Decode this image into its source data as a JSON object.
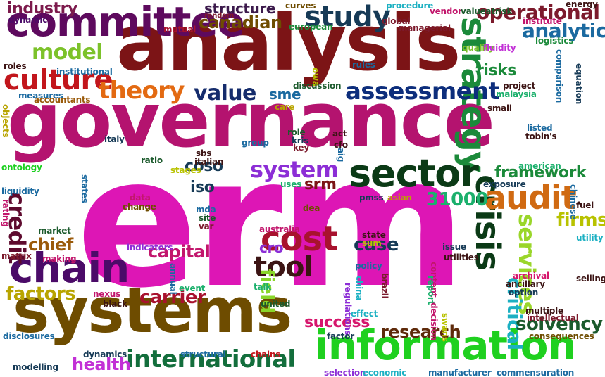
{
  "words": [
    {
      "text": "erm",
      "color": "#dd16b5",
      "rotate": false
    },
    {
      "text": "governance",
      "color": "#b4136f",
      "rotate": false
    },
    {
      "text": "analysis",
      "color": "#7c1416",
      "rotate": false
    },
    {
      "text": "systems",
      "color": "#6e4c00",
      "rotate": false
    },
    {
      "text": "information",
      "color": "#1fd01f",
      "rotate": false
    },
    {
      "text": "committee",
      "color": "#5e0a5e",
      "rotate": false
    },
    {
      "text": "strategy",
      "color": "#1b8a3a",
      "rotate": true
    },
    {
      "text": "sector",
      "color": "#0b3a16",
      "rotate": false
    },
    {
      "text": "crisis",
      "color": "#0b3a16",
      "rotate": true
    },
    {
      "text": "chain",
      "color": "#4b0b68",
      "rotate": false
    },
    {
      "text": "international",
      "color": "#136e3c",
      "rotate": false
    },
    {
      "text": "audit",
      "color": "#d06a12",
      "rotate": false
    },
    {
      "text": "study",
      "color": "#163a56",
      "rotate": false
    },
    {
      "text": "assessment",
      "color": "#0d2e7c",
      "rotate": false
    },
    {
      "text": "culture",
      "color": "#c2161c",
      "rotate": false
    },
    {
      "text": "model",
      "color": "#7cc22a",
      "rotate": false
    },
    {
      "text": "theory",
      "color": "#e36a12",
      "rotate": false
    },
    {
      "text": "value",
      "color": "#152c6c",
      "rotate": false
    },
    {
      "text": "system",
      "color": "#8c2ed6",
      "rotate": false
    },
    {
      "text": "cost",
      "color": "#a8122e",
      "rotate": false
    },
    {
      "text": "tool",
      "color": "#3c1414",
      "rotate": false
    },
    {
      "text": "credit",
      "color": "#5e0a2e",
      "rotate": true
    },
    {
      "text": "services",
      "color": "#9ad62a",
      "rotate": true
    },
    {
      "text": "operational",
      "color": "#7c1a2c",
      "rotate": false
    },
    {
      "text": "analytics",
      "color": "#1b6aa0",
      "rotate": false
    },
    {
      "text": "industry",
      "color": "#7c1a4c",
      "rotate": false
    },
    {
      "text": "structure",
      "color": "#3c1a4c",
      "rotate": false
    },
    {
      "text": "canadian",
      "color": "#6e4c00",
      "rotate": false
    },
    {
      "text": "risks",
      "color": "#1b8a3a",
      "rotate": false
    },
    {
      "text": "framework",
      "color": "#1b8a3a",
      "rotate": false
    },
    {
      "text": "capital",
      "color": "#c2166c",
      "rotate": false
    },
    {
      "text": "carrier",
      "color": "#a8122e",
      "rotate": false
    },
    {
      "text": "critical",
      "color": "#1bb0c2",
      "rotate": true
    },
    {
      "text": "solvency",
      "color": "#1b5a2c",
      "rotate": false
    },
    {
      "text": "research",
      "color": "#5e2a0a",
      "rotate": false
    },
    {
      "text": "health",
      "color": "#c230d6",
      "rotate": false
    },
    {
      "text": "factors",
      "color": "#b8a400",
      "rotate": false
    },
    {
      "text": "chief",
      "color": "#9a5a0a",
      "rotate": false
    },
    {
      "text": "success",
      "color": "#d6166c",
      "rotate": false
    },
    {
      "text": "field",
      "color": "#8ad62a",
      "rotate": true
    },
    {
      "text": "case",
      "color": "#163a56",
      "rotate": false
    },
    {
      "text": "31000",
      "color": "#1bb06c",
      "rotate": false
    },
    {
      "text": "firms",
      "color": "#b8c200",
      "rotate": false
    },
    {
      "text": "coso",
      "color": "#163a56",
      "rotate": false
    },
    {
      "text": "iso",
      "color": "#163a56",
      "rotate": false
    },
    {
      "text": "srm",
      "color": "#7c1416",
      "rotate": false
    },
    {
      "text": "cro",
      "color": "#8c2ed6",
      "rotate": false
    },
    {
      "text": "sme",
      "color": "#1b6aa0",
      "rotate": false
    },
    {
      "text": "dynamic",
      "color": "#4b0b68",
      "rotate": false
    },
    {
      "text": "random",
      "color": "#7c1a2c",
      "rotate": false
    },
    {
      "text": "mutual",
      "color": "#a8122e",
      "rotate": false
    },
    {
      "text": "curves",
      "color": "#6e4c00",
      "rotate": false
    },
    {
      "text": "european",
      "color": "#1b8a3a",
      "rotate": false
    },
    {
      "text": "procedure",
      "color": "#1bb0c2",
      "rotate": false
    },
    {
      "text": "global",
      "color": "#7c1a2c",
      "rotate": false
    },
    {
      "text": "managerial",
      "color": "#7c1a2c",
      "rotate": false
    },
    {
      "text": "vendor",
      "color": "#c2166c",
      "rotate": false
    },
    {
      "text": "valueatrisk",
      "color": "#1b5a2c",
      "rotate": false
    },
    {
      "text": "energy",
      "color": "#3c1414",
      "rotate": false
    },
    {
      "text": "institute",
      "color": "#c2166c",
      "rotate": false
    },
    {
      "text": "logistics",
      "color": "#1b8a3a",
      "rotate": false
    },
    {
      "text": "quality",
      "color": "#7cc22a",
      "rotate": false
    },
    {
      "text": "fluidity",
      "color": "#c230d6",
      "rotate": false
    },
    {
      "text": "comparison",
      "color": "#1b6aa0",
      "rotate": true
    },
    {
      "text": "equation",
      "color": "#163a56",
      "rotate": true
    },
    {
      "text": "roles",
      "color": "#3c1414",
      "rotate": false
    },
    {
      "text": "institutional",
      "color": "#1b6aa0",
      "rotate": false
    },
    {
      "text": "rules",
      "color": "#1b6aa0",
      "rotate": false
    },
    {
      "text": "owa",
      "color": "#b8c200",
      "rotate": true
    },
    {
      "text": "discussion",
      "color": "#1b5a2c",
      "rotate": false
    },
    {
      "text": "project",
      "color": "#3c1414",
      "rotate": false
    },
    {
      "text": "malaysia",
      "color": "#1bb06c",
      "rotate": false
    },
    {
      "text": "measures",
      "color": "#1b6aa0",
      "rotate": false
    },
    {
      "text": "accountants",
      "color": "#9a5a0a",
      "rotate": false
    },
    {
      "text": "objects",
      "color": "#b8a400",
      "rotate": true
    },
    {
      "text": "care",
      "color": "#b8a400",
      "rotate": false
    },
    {
      "text": "small",
      "color": "#3c1414",
      "rotate": false
    },
    {
      "text": "italy",
      "color": "#163a56",
      "rotate": false
    },
    {
      "text": "group",
      "color": "#1b6aa0",
      "rotate": false
    },
    {
      "text": "role",
      "color": "#1b5a2c",
      "rotate": false
    },
    {
      "text": "kris",
      "color": "#163a56",
      "rotate": false
    },
    {
      "text": "key",
      "color": "#7c1a2c",
      "rotate": false
    },
    {
      "text": "act",
      "color": "#3c1414",
      "rotate": false
    },
    {
      "text": "cfo",
      "color": "#3c1414",
      "rotate": false
    },
    {
      "text": "aig",
      "color": "#1b6aa0",
      "rotate": true
    },
    {
      "text": "listed",
      "color": "#1b6aa0",
      "rotate": false
    },
    {
      "text": "tobin's",
      "color": "#3c1414",
      "rotate": false
    },
    {
      "text": "ontology",
      "color": "#1bd01f",
      "rotate": false
    },
    {
      "text": "ratio",
      "color": "#1b5a2c",
      "rotate": false
    },
    {
      "text": "sbs",
      "color": "#3c1414",
      "rotate": false
    },
    {
      "text": "italian",
      "color": "#3c1414",
      "rotate": false
    },
    {
      "text": "stages",
      "color": "#b8c200",
      "rotate": false
    },
    {
      "text": "states",
      "color": "#1b6aa0",
      "rotate": true
    },
    {
      "text": "american",
      "color": "#1bb06c",
      "rotate": false
    },
    {
      "text": "exposure",
      "color": "#163a56",
      "rotate": false
    },
    {
      "text": "chinese",
      "color": "#1b6aa0",
      "rotate": true
    },
    {
      "text": "liquidity",
      "color": "#1b6aa0",
      "rotate": false
    },
    {
      "text": "rating",
      "color": "#c2166c",
      "rotate": true
    },
    {
      "text": "data",
      "color": "#c2166c",
      "rotate": false
    },
    {
      "text": "change",
      "color": "#6e4c00",
      "rotate": false
    },
    {
      "text": "uses",
      "color": "#1bb06c",
      "rotate": false
    },
    {
      "text": "dea",
      "color": "#6e4c00",
      "rotate": false
    },
    {
      "text": "pmss",
      "color": "#163a56",
      "rotate": false
    },
    {
      "text": "asian",
      "color": "#b8a400",
      "rotate": false
    },
    {
      "text": "fuel",
      "color": "#3c1414",
      "rotate": false
    },
    {
      "text": "mda",
      "color": "#1b6aa0",
      "rotate": false
    },
    {
      "text": "site",
      "color": "#1b5a2c",
      "rotate": false
    },
    {
      "text": "var",
      "color": "#7c1a2c",
      "rotate": false
    },
    {
      "text": "market",
      "color": "#1b5a2c",
      "rotate": false
    },
    {
      "text": "australia",
      "color": "#c2166c",
      "rotate": false
    },
    {
      "text": "state",
      "color": "#3c1414",
      "rotate": false
    },
    {
      "text": "sum",
      "color": "#b8c200",
      "rotate": false
    },
    {
      "text": "utility",
      "color": "#1bb0c2",
      "rotate": false
    },
    {
      "text": "matrix",
      "color": "#7c1a2c",
      "rotate": false
    },
    {
      "text": "making",
      "color": "#c2166c",
      "rotate": false
    },
    {
      "text": "indicators",
      "color": "#8c2ed6",
      "rotate": false
    },
    {
      "text": "policy",
      "color": "#1b6aa0",
      "rotate": false
    },
    {
      "text": "issue",
      "color": "#163a56",
      "rotate": false
    },
    {
      "text": "utilities",
      "color": "#3c1414",
      "rotate": false
    },
    {
      "text": "content",
      "color": "#c2166c",
      "rotate": true
    },
    {
      "text": "report",
      "color": "#1bb06c",
      "rotate": true
    },
    {
      "text": "annual",
      "color": "#1b6aa0",
      "rotate": true
    },
    {
      "text": "nexus",
      "color": "#c2166c",
      "rotate": false
    },
    {
      "text": "event",
      "color": "#1bb06c",
      "rotate": false
    },
    {
      "text": "china",
      "color": "#1bb0c2",
      "rotate": true
    },
    {
      "text": "regulations",
      "color": "#8c2ed6",
      "rotate": true
    },
    {
      "text": "brazil",
      "color": "#7c1a2c",
      "rotate": true
    },
    {
      "text": "archival",
      "color": "#d6166c",
      "rotate": false
    },
    {
      "text": "ancillary",
      "color": "#3c1414",
      "rotate": false
    },
    {
      "text": "option",
      "color": "#163a56",
      "rotate": false
    },
    {
      "text": "selling",
      "color": "#3c1414",
      "rotate": false
    },
    {
      "text": "black",
      "color": "#3c1414",
      "rotate": false
    },
    {
      "text": "talk",
      "color": "#1bb06c",
      "rotate": false
    },
    {
      "text": "united",
      "color": "#1b5a2c",
      "rotate": false
    },
    {
      "text": "effect",
      "color": "#1bb0c2",
      "rotate": false
    },
    {
      "text": "decision",
      "color": "#c2166c",
      "rotate": true
    },
    {
      "text": "swans",
      "color": "#b8c200",
      "rotate": true
    },
    {
      "text": "multiple",
      "color": "#3c1414",
      "rotate": false
    },
    {
      "text": "intellectual",
      "color": "#7c1a2c",
      "rotate": false
    },
    {
      "text": "disclosures",
      "color": "#1b6aa0",
      "rotate": false
    },
    {
      "text": "factor",
      "color": "#163a56",
      "rotate": false
    },
    {
      "text": "consequences",
      "color": "#6e4c00",
      "rotate": false
    },
    {
      "text": "dynamics",
      "color": "#163a56",
      "rotate": false
    },
    {
      "text": "structural",
      "color": "#1b6aa0",
      "rotate": false
    },
    {
      "text": "chains",
      "color": "#c2161c",
      "rotate": false
    },
    {
      "text": "modelling",
      "color": "#163a56",
      "rotate": false
    },
    {
      "text": "selection",
      "color": "#8c2ed6",
      "rotate": false
    },
    {
      "text": "economic",
      "color": "#1bb0c2",
      "rotate": false
    },
    {
      "text": "manufacturer",
      "color": "#1b6aa0",
      "rotate": false
    },
    {
      "text": "commensuration",
      "color": "#1b6aa0",
      "rotate": false
    }
  ]
}
